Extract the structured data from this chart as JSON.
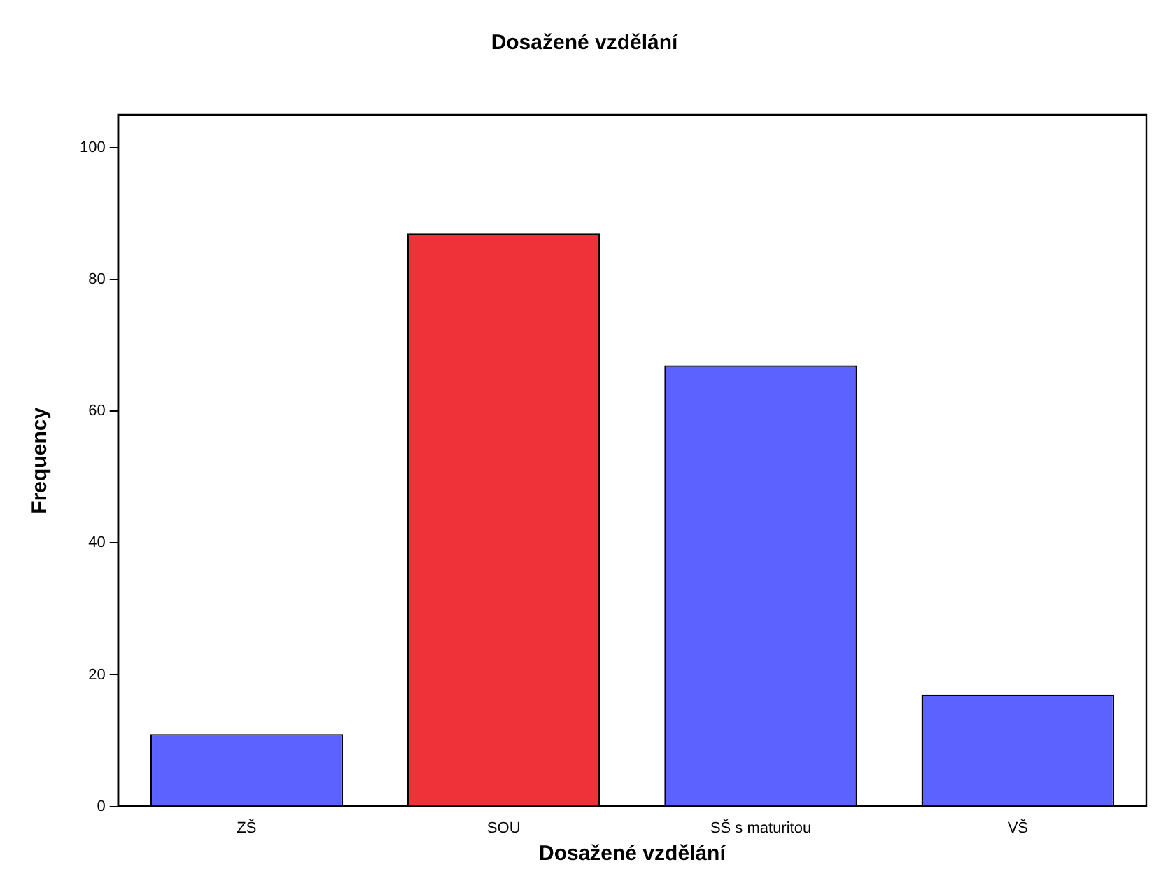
{
  "chart_data": {
    "type": "bar",
    "title": "Dosažené vzdělání",
    "xlabel": "Dosažené vzdělání",
    "ylabel": "Frequency",
    "categories": [
      "ZŠ",
      "SOU",
      "SŠ s maturitou",
      "VŠ"
    ],
    "values": [
      11,
      87,
      67,
      17
    ],
    "colors": [
      "#5b62ff",
      "#ef3139",
      "#5b62ff",
      "#5b62ff"
    ],
    "ylim": [
      0,
      105
    ],
    "yticks": [
      0,
      20,
      40,
      60,
      80,
      100
    ],
    "grid": false,
    "legend": false
  }
}
